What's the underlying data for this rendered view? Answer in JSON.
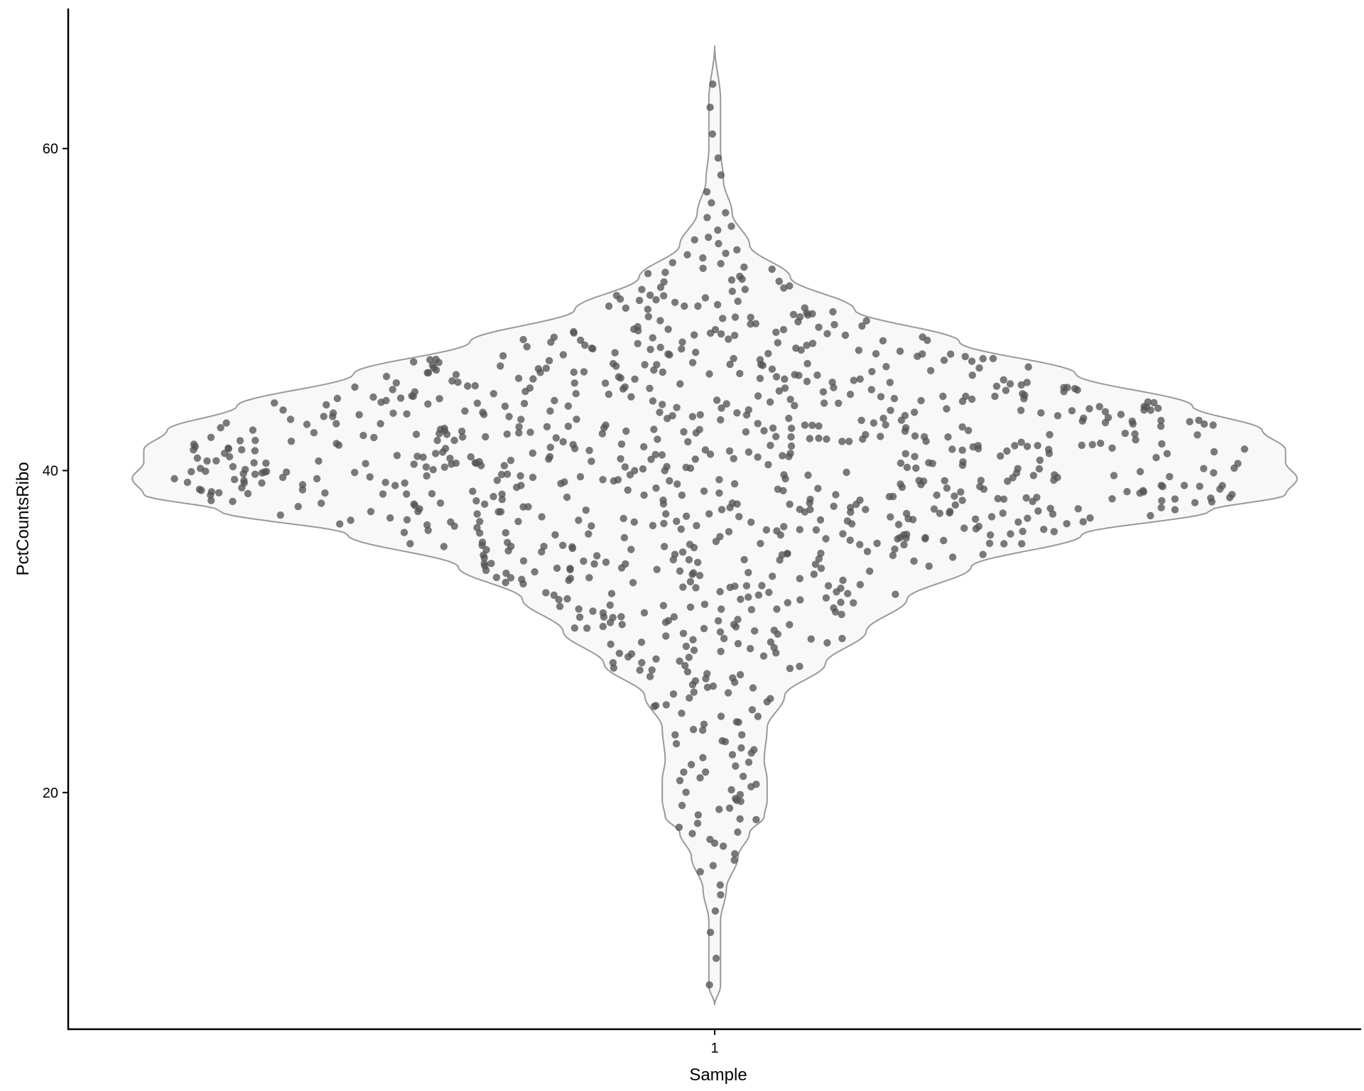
{
  "chart_data": {
    "type": "violin",
    "title": "",
    "xlabel": "Sample",
    "ylabel": "PctCountsRibo",
    "categories": [
      "1"
    ],
    "yticks": [
      20,
      40,
      60
    ],
    "ylim": [
      5.3,
      68.7
    ],
    "grid": false,
    "legend": "none",
    "colors": {
      "violin_fill": "#f8f8f8",
      "violin_stroke": "#999999",
      "point": "#555555",
      "axis": "#000000"
    },
    "series": [
      {
        "name": "",
        "category": "1",
        "n_points": 1010,
        "min": 6.8,
        "max": 66.4,
        "median": 40.8,
        "density_profile": [
          {
            "y": 6.8,
            "width": 0.0
          },
          {
            "y": 8.0,
            "width": 0.01
          },
          {
            "y": 10.0,
            "width": 0.01
          },
          {
            "y": 12.0,
            "width": 0.01
          },
          {
            "y": 14.0,
            "width": 0.02
          },
          {
            "y": 16.0,
            "width": 0.04
          },
          {
            "y": 17.5,
            "width": 0.06
          },
          {
            "y": 18.5,
            "width": 0.085
          },
          {
            "y": 19.5,
            "width": 0.09
          },
          {
            "y": 20.8,
            "width": 0.09
          },
          {
            "y": 22.0,
            "width": 0.085
          },
          {
            "y": 24.0,
            "width": 0.09
          },
          {
            "y": 26.0,
            "width": 0.12
          },
          {
            "y": 28.0,
            "width": 0.19
          },
          {
            "y": 30.0,
            "width": 0.26
          },
          {
            "y": 32.0,
            "width": 0.33
          },
          {
            "y": 34.0,
            "width": 0.44
          },
          {
            "y": 36.0,
            "width": 0.63
          },
          {
            "y": 37.5,
            "width": 0.85
          },
          {
            "y": 38.5,
            "width": 0.98
          },
          {
            "y": 39.5,
            "width": 1.0
          },
          {
            "y": 40.5,
            "width": 0.98
          },
          {
            "y": 41.3,
            "width": 0.98
          },
          {
            "y": 42.5,
            "width": 0.94
          },
          {
            "y": 44.0,
            "width": 0.82
          },
          {
            "y": 46.0,
            "width": 0.62
          },
          {
            "y": 48.0,
            "width": 0.42
          },
          {
            "y": 50.0,
            "width": 0.24
          },
          {
            "y": 52.0,
            "width": 0.13
          },
          {
            "y": 54.0,
            "width": 0.06
          },
          {
            "y": 56.0,
            "width": 0.03
          },
          {
            "y": 58.0,
            "width": 0.015
          },
          {
            "y": 60.0,
            "width": 0.01
          },
          {
            "y": 63.0,
            "width": 0.01
          },
          {
            "y": 66.4,
            "width": 0.0
          }
        ]
      }
    ]
  }
}
